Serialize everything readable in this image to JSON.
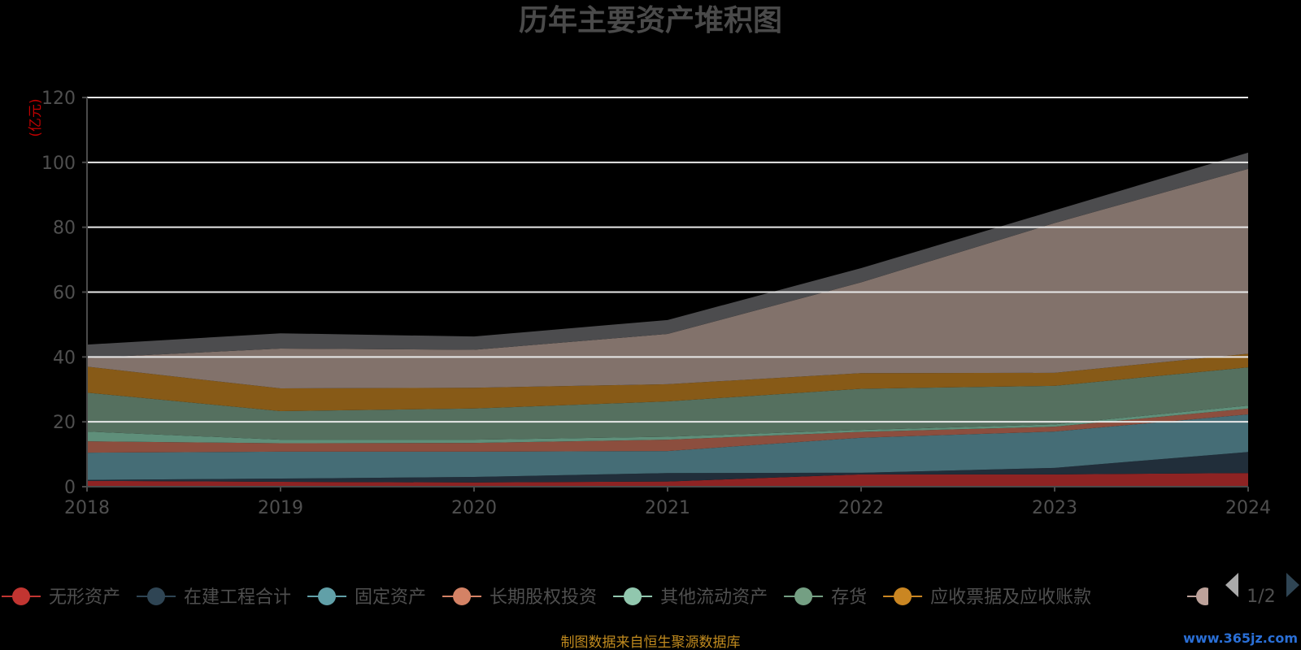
{
  "chart_data": {
    "type": "area",
    "stacked": true,
    "title": "历年主要资产堆积图",
    "unit_label": "(亿元)",
    "x": [
      "2018",
      "2019",
      "2020",
      "2021",
      "2022",
      "2023",
      "2024"
    ],
    "ylim": [
      0,
      120
    ],
    "y_ticks": [
      "0",
      "20",
      "40",
      "60",
      "80",
      "100",
      "120"
    ],
    "grid": true,
    "legend_position": "bottom",
    "series": [
      {
        "name": "无形资产",
        "color": "#8e2323",
        "legend_color": "#c23531",
        "values": [
          1.8,
          1.5,
          1.3,
          1.6,
          3.8,
          3.8,
          4.2
        ]
      },
      {
        "name": "在建工程合计",
        "color": "#212e3a",
        "legend_color": "#2f4554",
        "values": [
          0.3,
          1.0,
          1.7,
          2.6,
          0.5,
          2.0,
          6.5
        ]
      },
      {
        "name": "固定资产",
        "color": "#456d76",
        "legend_color": "#61a0a8",
        "values": [
          8.4,
          8.3,
          7.8,
          6.8,
          10.8,
          11.2,
          11.6
        ]
      },
      {
        "name": "长期股权投资",
        "color": "#8c4e3e",
        "legend_color": "#d48265",
        "values": [
          3.5,
          2.6,
          2.7,
          3.5,
          1.8,
          1.5,
          1.8
        ]
      },
      {
        "name": "其他流动资产",
        "color": "#5f8f7a",
        "legend_color": "#91c7ae",
        "values": [
          3.0,
          1.1,
          1.0,
          0.9,
          0.6,
          0.7,
          0.9
        ]
      },
      {
        "name": "存货",
        "color": "#55705f",
        "legend_color": "#749f83",
        "values": [
          12.0,
          8.8,
          9.6,
          10.9,
          12.7,
          11.9,
          11.8
        ]
      },
      {
        "name": "应收票据及应收账款",
        "color": "#875a17",
        "legend_color": "#ca8622",
        "values": [
          8.0,
          7.0,
          6.4,
          5.3,
          4.8,
          4.0,
          4.2
        ]
      },
      {
        "name": "",
        "color": "#82726b",
        "legend_color": "#bda29a",
        "values": [
          2.7,
          12.3,
          11.7,
          15.5,
          28.0,
          46.2,
          57.0
        ]
      },
      {
        "name": "",
        "color": "#4c4c4e",
        "legend_color": "#6e7074",
        "values": [
          4.1,
          4.7,
          4.1,
          4.3,
          4.4,
          3.9,
          5.0
        ]
      }
    ]
  },
  "legend": {
    "pager_text": "1/2"
  },
  "footer": {
    "source": "制图数据来自恒生聚源数据库",
    "watermark": "www.365jz.com"
  }
}
